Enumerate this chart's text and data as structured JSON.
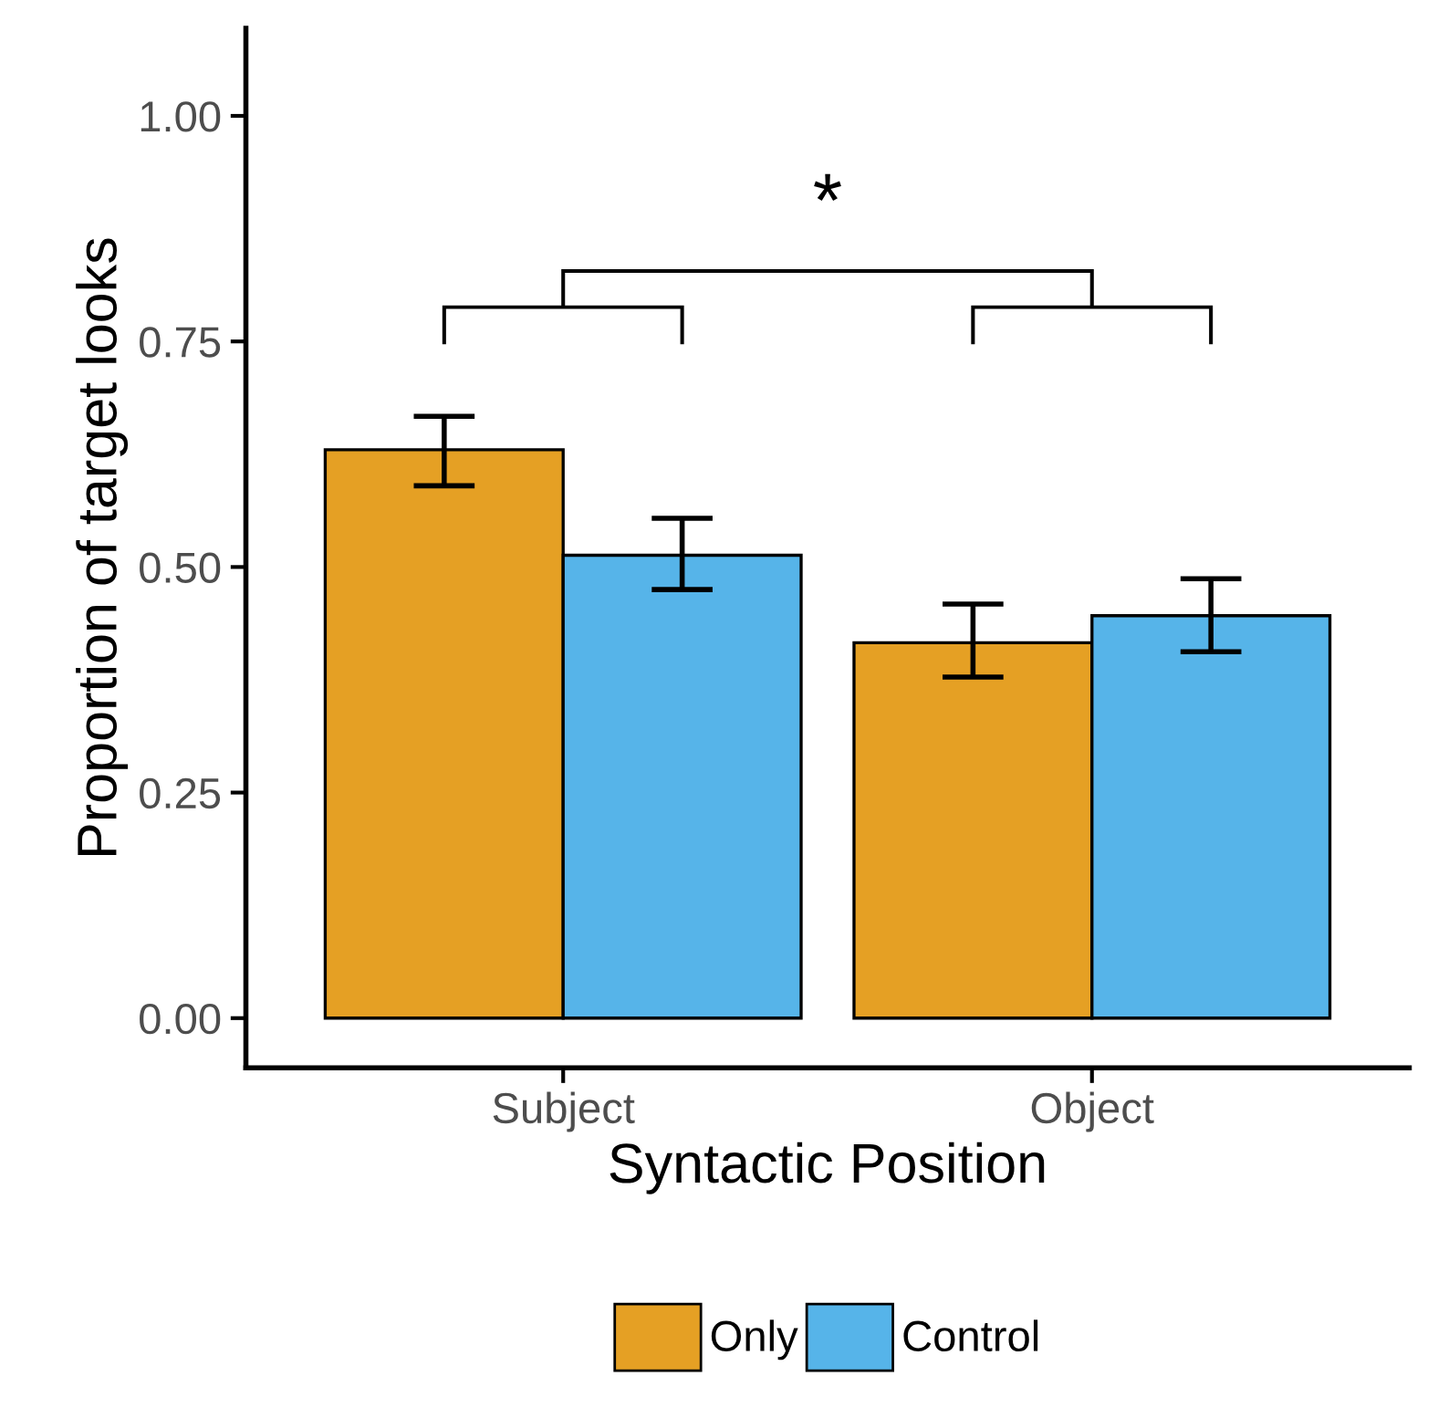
{
  "chart_data": {
    "type": "bar",
    "xlabel": "Syntactic Position",
    "ylabel": "Proportion of target looks",
    "categories": [
      "Subject",
      "Object"
    ],
    "series": [
      {
        "name": "Only",
        "color": "#e5a024",
        "values": [
          0.63,
          0.416
        ],
        "errors": [
          [
            0.59,
            0.667
          ],
          [
            0.378,
            0.459
          ]
        ]
      },
      {
        "name": "Control",
        "color": "#56b4e9",
        "values": [
          0.513,
          0.446
        ],
        "errors": [
          [
            0.475,
            0.554
          ],
          [
            0.406,
            0.487
          ]
        ]
      }
    ],
    "ylim": [
      -0.055,
      1.097
    ],
    "yticks": [
      {
        "value": 0,
        "label": "0.00"
      },
      {
        "value": 0.25,
        "label": "0.25"
      },
      {
        "value": 0.5,
        "label": "0.50"
      },
      {
        "value": 0.75,
        "label": "0.75"
      },
      {
        "value": 1,
        "label": "1.00"
      }
    ],
    "annotations": [
      "*"
    ],
    "grid": false,
    "legend": "bottom"
  }
}
